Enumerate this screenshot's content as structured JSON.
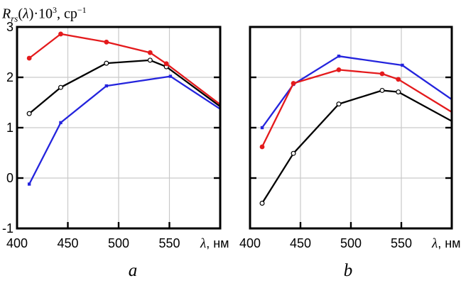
{
  "figure": {
    "y_axis_title": {
      "symbol": "R",
      "subscript": "rs",
      "lparen": "(",
      "lambda": "λ",
      "after_lambda": ")·10",
      "exponent": "3",
      "unit_prefix": ", ср",
      "unit_exponent": "−1"
    },
    "x_axis_label": {
      "lambda": "λ",
      "rest": ", нм"
    },
    "panel_labels": {
      "a": "a",
      "b": "b"
    }
  },
  "colors": {
    "red": "#e41a1c",
    "blue": "#2424dd",
    "black": "#000000",
    "grid": "#c9c9c9",
    "frame": "#000000"
  },
  "chart_data": [
    {
      "type": "line",
      "panel": "a",
      "xlabel": "λ, нм",
      "ylabel": "Rrs(λ)·10³, ср⁻¹",
      "xlim": [
        400,
        600
      ],
      "ylim": [
        -1,
        3
      ],
      "xticks": [
        400,
        450,
        500,
        550
      ],
      "xtick_labels": [
        "400",
        "450",
        "500",
        "550"
      ],
      "yticks": [
        3,
        2,
        1,
        0,
        -1
      ],
      "ytick_labels": [
        "3",
        "2",
        "1",
        "0",
        "-1"
      ],
      "grid": true,
      "show_ytick_labels": true,
      "series": [
        {
          "name": "blue-curve",
          "color_key": "blue",
          "marker": "square",
          "points": [
            [
              412,
              -0.12
            ],
            [
              443,
              1.1
            ],
            [
              488,
              1.83
            ],
            [
              551,
              2.02
            ],
            [
              600,
              1.37
            ]
          ],
          "clip_last": true
        },
        {
          "name": "black-curve",
          "color_key": "black",
          "marker": "open-circle",
          "points": [
            [
              412,
              1.28
            ],
            [
              443,
              1.8
            ],
            [
              488,
              2.28
            ],
            [
              531,
              2.34
            ],
            [
              547,
              2.21
            ],
            [
              600,
              1.42
            ]
          ],
          "clip_last": true
        },
        {
          "name": "red-curve",
          "color_key": "red",
          "marker": "filled-circle",
          "points": [
            [
              412,
              2.38
            ],
            [
              443,
              2.86
            ],
            [
              488,
              2.7
            ],
            [
              531,
              2.49
            ],
            [
              547,
              2.27
            ],
            [
              600,
              1.46
            ]
          ],
          "clip_last": true
        }
      ]
    },
    {
      "type": "line",
      "panel": "b",
      "xlabel": "λ, нм",
      "ylabel": "",
      "xlim": [
        400,
        600
      ],
      "ylim": [
        -1,
        3
      ],
      "xticks": [
        400,
        450,
        500,
        550
      ],
      "xtick_labels": [
        "400",
        "450",
        "500",
        "550"
      ],
      "yticks": [
        3,
        2,
        1,
        0,
        -1
      ],
      "ytick_labels": [],
      "grid": true,
      "show_ytick_labels": false,
      "series": [
        {
          "name": "blue-curve",
          "color_key": "blue",
          "marker": "square",
          "points": [
            [
              412,
              1.0
            ],
            [
              443,
              1.86
            ],
            [
              488,
              2.42
            ],
            [
              551,
              2.24
            ],
            [
              600,
              1.56
            ]
          ],
          "clip_last": true
        },
        {
          "name": "black-curve",
          "color_key": "black",
          "marker": "open-circle",
          "points": [
            [
              412,
              -0.5
            ],
            [
              443,
              0.49
            ],
            [
              488,
              1.47
            ],
            [
              531,
              1.74
            ],
            [
              547,
              1.71
            ],
            [
              600,
              1.13
            ]
          ],
          "clip_last": true
        },
        {
          "name": "red-curve",
          "color_key": "red",
          "marker": "filled-circle",
          "points": [
            [
              412,
              0.62
            ],
            [
              443,
              1.88
            ],
            [
              488,
              2.15
            ],
            [
              531,
              2.07
            ],
            [
              547,
              1.96
            ],
            [
              600,
              1.31
            ]
          ],
          "clip_last": true
        }
      ]
    }
  ]
}
